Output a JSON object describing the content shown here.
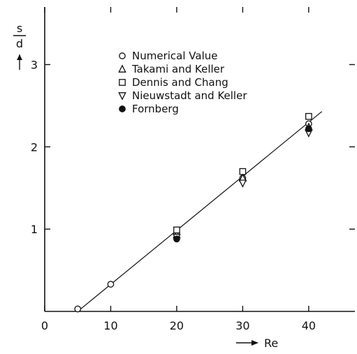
{
  "chart_data": {
    "type": "scatter",
    "title": "",
    "xlabel": "Re",
    "ylabel": "s/d",
    "ylabel_top": "s",
    "ylabel_bottom": "d",
    "xlim": [
      0,
      47
    ],
    "ylim": [
      0,
      3.7
    ],
    "x_ticks": [
      0,
      10,
      20,
      30,
      40
    ],
    "y_ticks": [
      1,
      2,
      3
    ],
    "grid": false,
    "legend_position": "top-left",
    "series": [
      {
        "name": "Numerical Value",
        "marker": "circle-open",
        "x": [
          5,
          10,
          20,
          30,
          40
        ],
        "y": [
          0.03,
          0.33,
          0.95,
          1.62,
          2.28
        ]
      },
      {
        "name": "Takami and Keller",
        "marker": "triangle-up-open",
        "x": [
          20,
          30,
          40
        ],
        "y": [
          0.93,
          1.62,
          2.24
        ]
      },
      {
        "name": "Dennis and Chang",
        "marker": "square-open",
        "x": [
          20,
          30,
          40
        ],
        "y": [
          0.99,
          1.7,
          2.37
        ]
      },
      {
        "name": "Nieuwstadt and Keller",
        "marker": "triangle-down-open",
        "x": [
          20,
          30,
          40
        ],
        "y": [
          0.9,
          1.56,
          2.17
        ]
      },
      {
        "name": "Fornberg",
        "marker": "circle-filled",
        "x": [
          20,
          40
        ],
        "y": [
          0.88,
          2.22
        ]
      }
    ],
    "fit_line": {
      "x": [
        5,
        42
      ],
      "y": [
        0.0,
        2.43
      ]
    }
  }
}
